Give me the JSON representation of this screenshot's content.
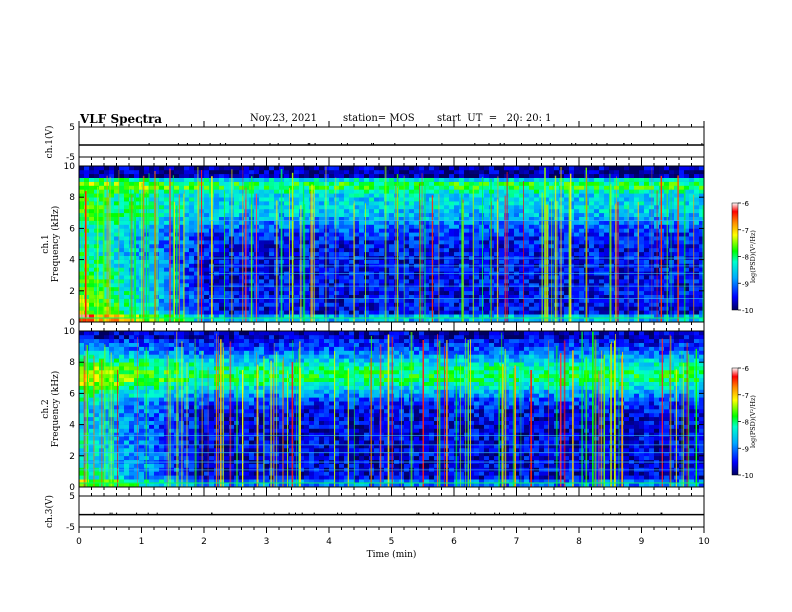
{
  "header": {
    "title": "VLF Spectra",
    "date": "Nov.23, 2021",
    "station": "station= MOS",
    "start": "start  UT  =   20: 20: 1"
  },
  "chart_data": [
    {
      "type": "line",
      "panel": "ch1-waveform",
      "ylabel": "ch.1(V)",
      "ylim": [
        -5,
        5
      ],
      "yticks": [
        "5",
        "-5"
      ],
      "xlim": [
        0,
        10
      ],
      "series": [
        {
          "x": [
            0,
            10
          ],
          "values": [
            -1,
            -1
          ]
        }
      ]
    },
    {
      "type": "heatmap",
      "panel": "ch1-spectrogram",
      "ylabel": "Frequency (kHz)",
      "channel_label": "ch.1",
      "ylim": [
        0,
        10
      ],
      "yticks": [
        "0",
        "2",
        "4",
        "6",
        "8",
        "10"
      ],
      "xlim": [
        0,
        10
      ],
      "colorbar": {
        "label": "log(PSD)(V²/Hz)",
        "min": -10,
        "max": -6,
        "ticks": [
          "-6",
          "-7",
          "-8",
          "-9",
          "-10"
        ]
      }
    },
    {
      "type": "heatmap",
      "panel": "ch2-spectrogram",
      "ylabel": "Frequency (kHz)",
      "channel_label": "ch.2",
      "ylim": [
        0,
        10
      ],
      "yticks": [
        "0",
        "2",
        "4",
        "6",
        "8",
        "10"
      ],
      "xlim": [
        0,
        10
      ],
      "colorbar": {
        "label": "log(PSD)(V²/Hz)",
        "min": -10,
        "max": -6,
        "ticks": [
          "-6",
          "-7",
          "-8",
          "-9",
          "-10"
        ]
      }
    },
    {
      "type": "line",
      "panel": "ch3-waveform",
      "ylabel": "ch.3(V)",
      "ylim": [
        -5,
        5
      ],
      "yticks": [
        "5",
        "-5"
      ],
      "xlim": [
        0,
        10
      ],
      "xlabel": "Time (min)",
      "xticks": [
        "0",
        "1",
        "2",
        "3",
        "4",
        "5",
        "6",
        "7",
        "8",
        "9",
        "10"
      ],
      "series": [
        {
          "x": [
            0,
            10
          ],
          "values": [
            -1,
            -1
          ]
        }
      ]
    }
  ]
}
